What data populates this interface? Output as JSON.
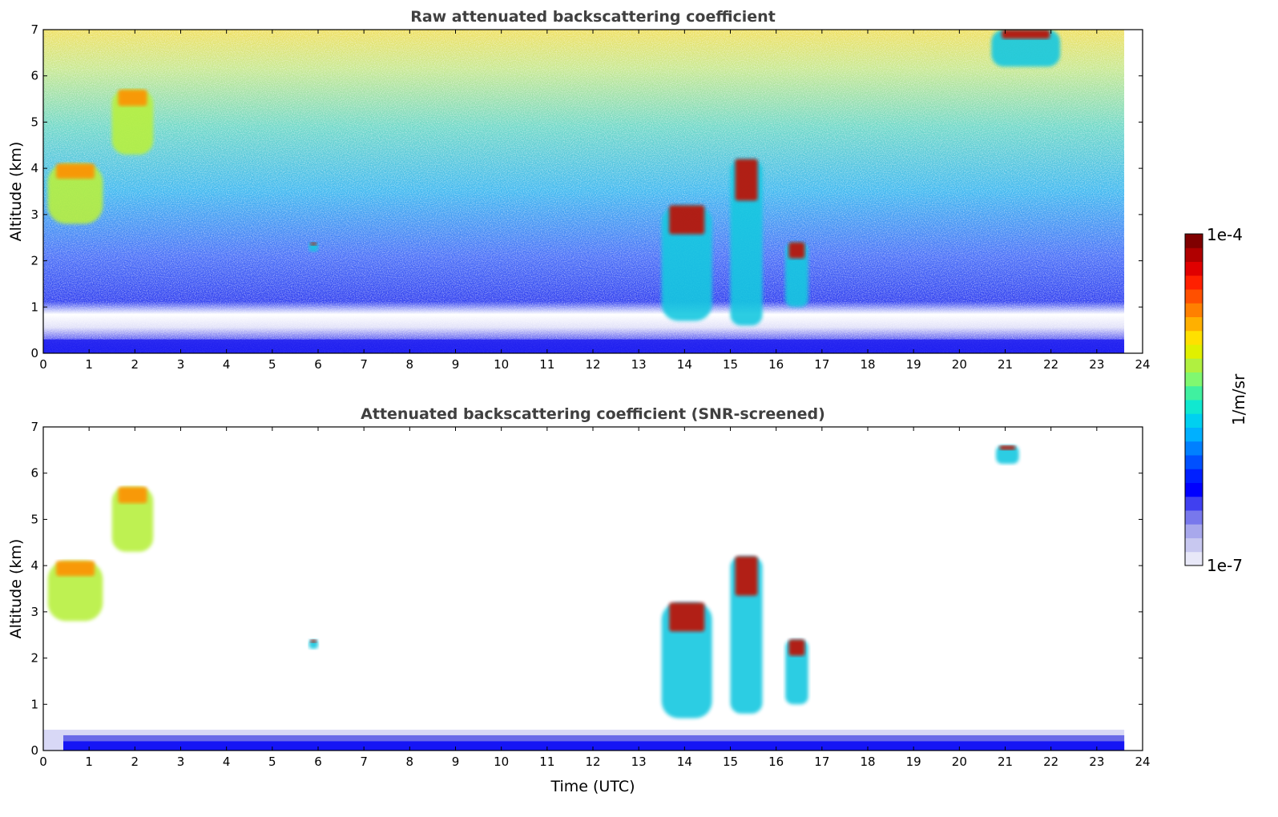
{
  "chart_data": [
    {
      "type": "heatmap",
      "title": "Raw attenuated backscattering coefficient",
      "xlabel": "",
      "ylabel": "Altitude (km)",
      "xlim": [
        0,
        24
      ],
      "ylim": [
        0,
        7
      ],
      "x_ticks": [
        "0",
        "1",
        "2",
        "3",
        "4",
        "5",
        "6",
        "7",
        "8",
        "9",
        "10",
        "11",
        "12",
        "13",
        "14",
        "15",
        "16",
        "17",
        "18",
        "19",
        "20",
        "21",
        "22",
        "23",
        "24"
      ],
      "y_ticks": [
        "0",
        "1",
        "2",
        "3",
        "4",
        "5",
        "6",
        "7"
      ],
      "data_end_time": 23.6,
      "features": [
        {
          "t0": 0.1,
          "t1": 1.3,
          "z0": 2.8,
          "z1": 4.1,
          "level": "high"
        },
        {
          "t0": 1.5,
          "t1": 2.4,
          "z0": 4.3,
          "z1": 5.7,
          "level": "high"
        },
        {
          "t0": 5.8,
          "t1": 6.0,
          "z0": 2.2,
          "z1": 2.4,
          "level": "very-high"
        },
        {
          "t0": 13.5,
          "t1": 14.6,
          "z0": 0.7,
          "z1": 3.2,
          "level": "very-high"
        },
        {
          "t0": 15.0,
          "t1": 15.7,
          "z0": 0.6,
          "z1": 4.2,
          "level": "very-high"
        },
        {
          "t0": 16.2,
          "t1": 16.7,
          "z0": 1.0,
          "z1": 2.4,
          "level": "very-high"
        },
        {
          "t0": 20.7,
          "t1": 22.2,
          "z0": 6.2,
          "z1": 7.0,
          "level": "very-high"
        }
      ],
      "boundary_layer_top_km": 0.45
    },
    {
      "type": "heatmap",
      "title": "Attenuated backscattering coefficient (SNR-screened)",
      "xlabel": "Time (UTC)",
      "ylabel": "Altitude (km)",
      "xlim": [
        0,
        24
      ],
      "ylim": [
        0,
        7
      ],
      "x_ticks": [
        "0",
        "1",
        "2",
        "3",
        "4",
        "5",
        "6",
        "7",
        "8",
        "9",
        "10",
        "11",
        "12",
        "13",
        "14",
        "15",
        "16",
        "17",
        "18",
        "19",
        "20",
        "21",
        "22",
        "23",
        "24"
      ],
      "y_ticks": [
        "0",
        "1",
        "2",
        "3",
        "4",
        "5",
        "6",
        "7"
      ],
      "data_end_time": 23.6,
      "features": [
        {
          "t0": 0.1,
          "t1": 1.3,
          "z0": 2.8,
          "z1": 4.1,
          "level": "high"
        },
        {
          "t0": 1.5,
          "t1": 2.4,
          "z0": 4.3,
          "z1": 5.7,
          "level": "high"
        },
        {
          "t0": 5.8,
          "t1": 6.0,
          "z0": 2.2,
          "z1": 2.4,
          "level": "very-high"
        },
        {
          "t0": 13.5,
          "t1": 14.6,
          "z0": 0.7,
          "z1": 3.2,
          "level": "very-high"
        },
        {
          "t0": 15.0,
          "t1": 15.7,
          "z0": 0.8,
          "z1": 4.2,
          "level": "very-high"
        },
        {
          "t0": 16.2,
          "t1": 16.7,
          "z0": 1.0,
          "z1": 2.4,
          "level": "very-high"
        },
        {
          "t0": 20.8,
          "t1": 21.3,
          "z0": 6.2,
          "z1": 6.6,
          "level": "very-high"
        }
      ],
      "boundary_layer_top_km": 0.45
    }
  ],
  "colorbar": {
    "label": "1/m/sr",
    "max_label": "1e-4",
    "min_label": "1e-7",
    "colors": [
      "#e8e8f8",
      "#c8c8f0",
      "#a8a8ec",
      "#7878ec",
      "#4040f0",
      "#0000ff",
      "#0020ff",
      "#0050ff",
      "#0080ff",
      "#00b0ff",
      "#00d0f0",
      "#10e8d0",
      "#40f0a0",
      "#80f870",
      "#b0f040",
      "#e0f000",
      "#ffe000",
      "#ffb000",
      "#ff8000",
      "#ff5000",
      "#ff2000",
      "#e00000",
      "#b00000",
      "#800000"
    ]
  }
}
